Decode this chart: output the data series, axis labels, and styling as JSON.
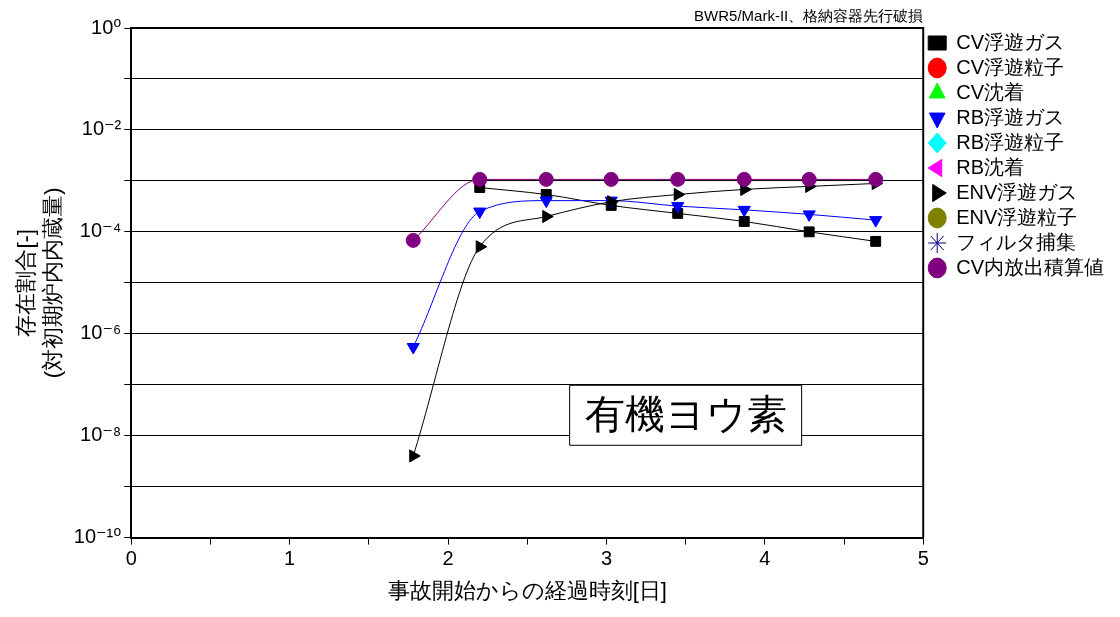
{
  "chart_data": {
    "type": "line",
    "title": "BWR5/Mark-II、格納容器先行破損",
    "xlabel": "事故開始からの経過時刻[日]",
    "ylabel": "存在割合[-]\n(対初期炉内内蔵量)",
    "annotations": [
      "有機ヨウ素"
    ],
    "x": [
      1.78,
      2.2,
      2.62,
      3.03,
      3.45,
      3.87,
      4.28,
      4.7
    ],
    "series": [
      {
        "name": "CV浮遊ガス",
        "color": "#000000",
        "marker": "square",
        "values": [
          null,
          0.00074,
          0.00054,
          0.00033,
          0.00023,
          0.00016,
          0.0001,
          6.5e-05
        ]
      },
      {
        "name": "CV浮遊粒子",
        "color": "#ff0000",
        "marker": "circle",
        "values": [
          null,
          null,
          null,
          null,
          null,
          null,
          null,
          null
        ]
      },
      {
        "name": "CV沈着",
        "color": "#00ff00",
        "marker": "triangle",
        "values": [
          null,
          null,
          null,
          null,
          null,
          null,
          null,
          null
        ]
      },
      {
        "name": "RB浮遊ガス",
        "color": "#0000ff",
        "marker": "triangle-down",
        "values": [
          5.5e-07,
          0.00025,
          0.00041,
          0.00041,
          0.00032,
          0.00027,
          0.00022,
          0.00017
        ]
      },
      {
        "name": "RB浮遊粒子",
        "color": "#00ffff",
        "marker": "diamond",
        "values": [
          null,
          null,
          null,
          null,
          null,
          null,
          null,
          null
        ]
      },
      {
        "name": "RB沈着",
        "color": "#ff00ff",
        "marker": "triangle-left",
        "values": [
          null,
          null,
          null,
          null,
          null,
          null,
          null,
          null
        ]
      },
      {
        "name": "ENV浮遊ガス",
        "color": "#000000",
        "marker": "triangle-right",
        "values": [
          4e-09,
          5.1e-05,
          0.0002,
          0.00039,
          0.00054,
          0.00068,
          0.00078,
          0.00089
        ]
      },
      {
        "name": "ENV浮遊粒子",
        "color": "#808000",
        "marker": "circle",
        "values": [
          null,
          null,
          null,
          null,
          null,
          null,
          null,
          null
        ]
      },
      {
        "name": "フィルタ捕集",
        "color": "#000080",
        "marker": "star",
        "values": [
          null,
          null,
          null,
          null,
          null,
          null,
          null,
          null
        ]
      },
      {
        "name": "CV内放出積算値",
        "color": "#800080",
        "marker": "circle",
        "values": [
          6.8e-05,
          0.00107,
          0.00107,
          0.00107,
          0.00107,
          0.00107,
          0.00107,
          0.00107
        ]
      }
    ],
    "log": "y",
    "xlim": [
      0,
      5
    ],
    "ylim": [
      1e-10,
      1
    ],
    "xticks": [
      0,
      {
        "value": 0.5,
        "label": null
      },
      1,
      {
        "value": 1.5,
        "label": null
      },
      2,
      {
        "value": 2.5,
        "label": null
      },
      3,
      {
        "value": 3.5,
        "label": null
      },
      4,
      {
        "value": 4.5,
        "label": null
      },
      5
    ],
    "yticks": [
      {
        "value": 1e-10,
        "label": "10⁻¹⁰"
      },
      {
        "value": 1e-09,
        "label": null
      },
      {
        "value": 1e-08,
        "label": "10⁻⁸"
      },
      {
        "value": 1e-07,
        "label": null
      },
      {
        "value": 1e-06,
        "label": "10⁻⁶"
      },
      {
        "value": 1e-05,
        "label": null
      },
      {
        "value": 0.0001,
        "label": "10⁻⁴"
      },
      {
        "value": 0.001,
        "label": null
      },
      {
        "value": 0.01,
        "label": "10⁻²"
      },
      {
        "value": 0.1,
        "label": null
      },
      {
        "value": 1,
        "label": "10⁰"
      }
    ],
    "grid": "y",
    "legend": "top right"
  }
}
